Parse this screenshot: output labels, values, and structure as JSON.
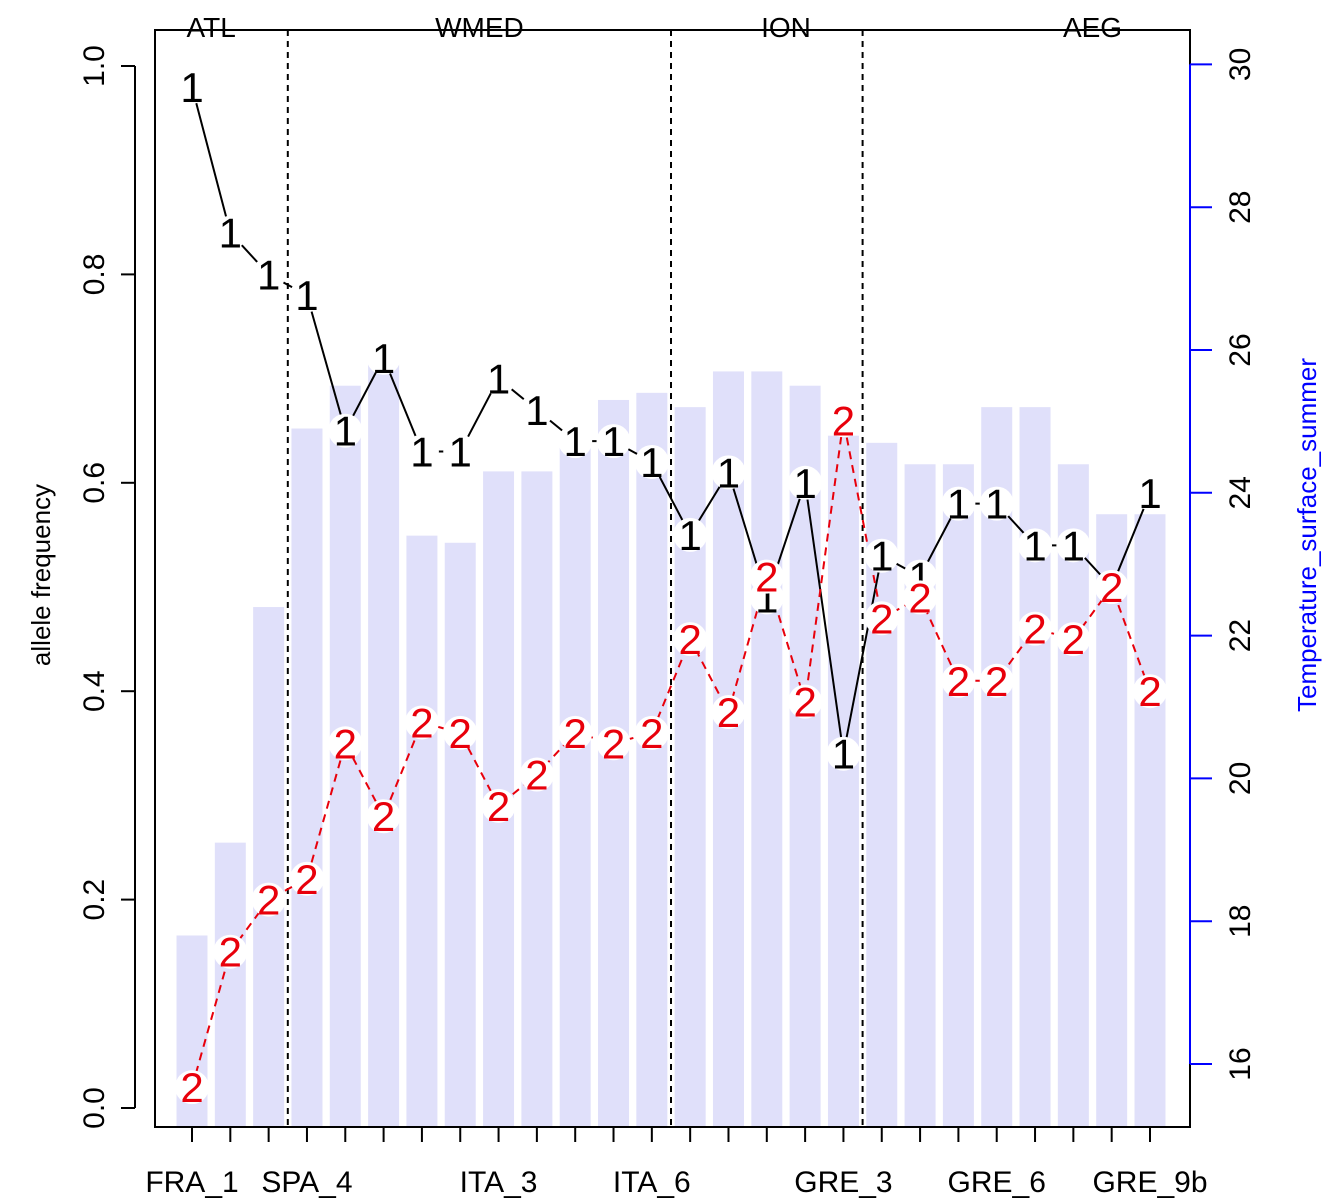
{
  "chart_data": {
    "type": "line",
    "ylabel": "allele frequency",
    "ylabel_right": "Temperature_surface_summer",
    "ylim": [
      0,
      1
    ],
    "ylim_right": [
      15,
      30
    ],
    "yticks": [
      "0.0",
      "0.2",
      "0.4",
      "0.6",
      "0.8",
      "1.0"
    ],
    "yticks_right": [
      "16",
      "18",
      "20",
      "22",
      "24",
      "26",
      "28",
      "30"
    ],
    "xtick_labels": [
      "FRA_1",
      "SPA_4",
      "ITA_3",
      "ITA_6",
      "GRE_3",
      "GRE_6",
      "GRE_9b"
    ],
    "xtick_label_positions": [
      1,
      4,
      9,
      13,
      18,
      22,
      26
    ],
    "n_sites": 26,
    "regions": [
      {
        "name": "ATL",
        "center": 1.5
      },
      {
        "name": "WMED",
        "center": 8.5
      },
      {
        "name": "ION",
        "center": 16.5
      },
      {
        "name": "AEG",
        "center": 24.5
      }
    ],
    "region_boundaries": [
      3.5,
      13.5,
      18.5
    ],
    "series": [
      {
        "name": "1",
        "marker": "1",
        "color": "#000000",
        "line_style": "solid",
        "values": [
          0.98,
          0.84,
          0.8,
          0.78,
          0.65,
          0.72,
          0.63,
          0.63,
          0.7,
          0.67,
          0.64,
          0.64,
          0.62,
          0.55,
          0.61,
          0.49,
          0.6,
          0.34,
          0.53,
          0.51,
          0.58,
          0.58,
          0.54,
          0.54,
          0.5,
          0.59
        ]
      },
      {
        "name": "2",
        "marker": "2",
        "color": "#e8000b",
        "line_style": "dashed",
        "values": [
          0.02,
          0.15,
          0.2,
          0.22,
          0.35,
          0.28,
          0.37,
          0.36,
          0.29,
          0.32,
          0.36,
          0.35,
          0.36,
          0.45,
          0.38,
          0.51,
          0.39,
          0.66,
          0.47,
          0.49,
          0.41,
          0.41,
          0.46,
          0.45,
          0.5,
          0.4
        ]
      }
    ],
    "temperature": {
      "name": "Temperature_surface_summer",
      "bar_color": "#e0e0fa",
      "axis_color": "#0000ff",
      "values": [
        17.8,
        19.1,
        22.4,
        24.9,
        25.5,
        25.8,
        23.4,
        23.3,
        24.3,
        24.3,
        24.8,
        25.3,
        25.4,
        25.2,
        25.7,
        25.7,
        25.5,
        24.8,
        24.7,
        24.4,
        24.4,
        25.2,
        25.2,
        24.4,
        23.7,
        23.7
      ]
    }
  }
}
